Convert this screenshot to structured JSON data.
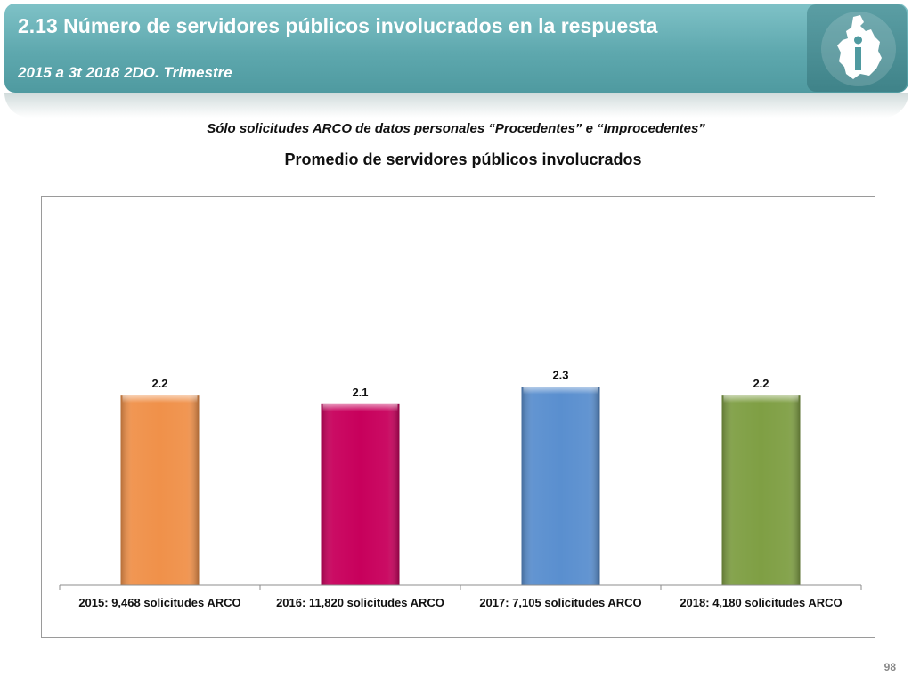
{
  "header": {
    "title": "2.13 Número de servidores públicos involucrados en la respuesta",
    "subtitle": "2015 a 3t 2018 2DO. Trimestre"
  },
  "section_label": "Sólo solicitudes ARCO de datos personales “Procedentes” e “Improcedentes”",
  "page_number": "98",
  "colors": {
    "header": "#5ea8ae",
    "bar_2015": "#f0914a",
    "bar_2016": "#c8005c",
    "bar_2017": "#5a8fcf",
    "bar_2018": "#7f9f44"
  },
  "chart_data": {
    "type": "bar",
    "title": "Promedio de servidores públicos involucrados",
    "categories": [
      "2015: 9,468 solicitudes ARCO",
      "2016: 11,820 solicitudes ARCO",
      "2017: 7,105 solicitudes ARCO",
      "2018: 4,180 solicitudes ARCO"
    ],
    "values": [
      2.2,
      2.1,
      2.3,
      2.2
    ],
    "data_labels": [
      "2.2",
      "2.1",
      "2.3",
      "2.2"
    ],
    "bar_colors": [
      "#f0914a",
      "#c8005c",
      "#5a8fcf",
      "#7f9f44"
    ],
    "xlabel": "",
    "ylabel": "",
    "ylim": [
      0,
      4.3
    ],
    "grid": false,
    "legend": "none"
  }
}
